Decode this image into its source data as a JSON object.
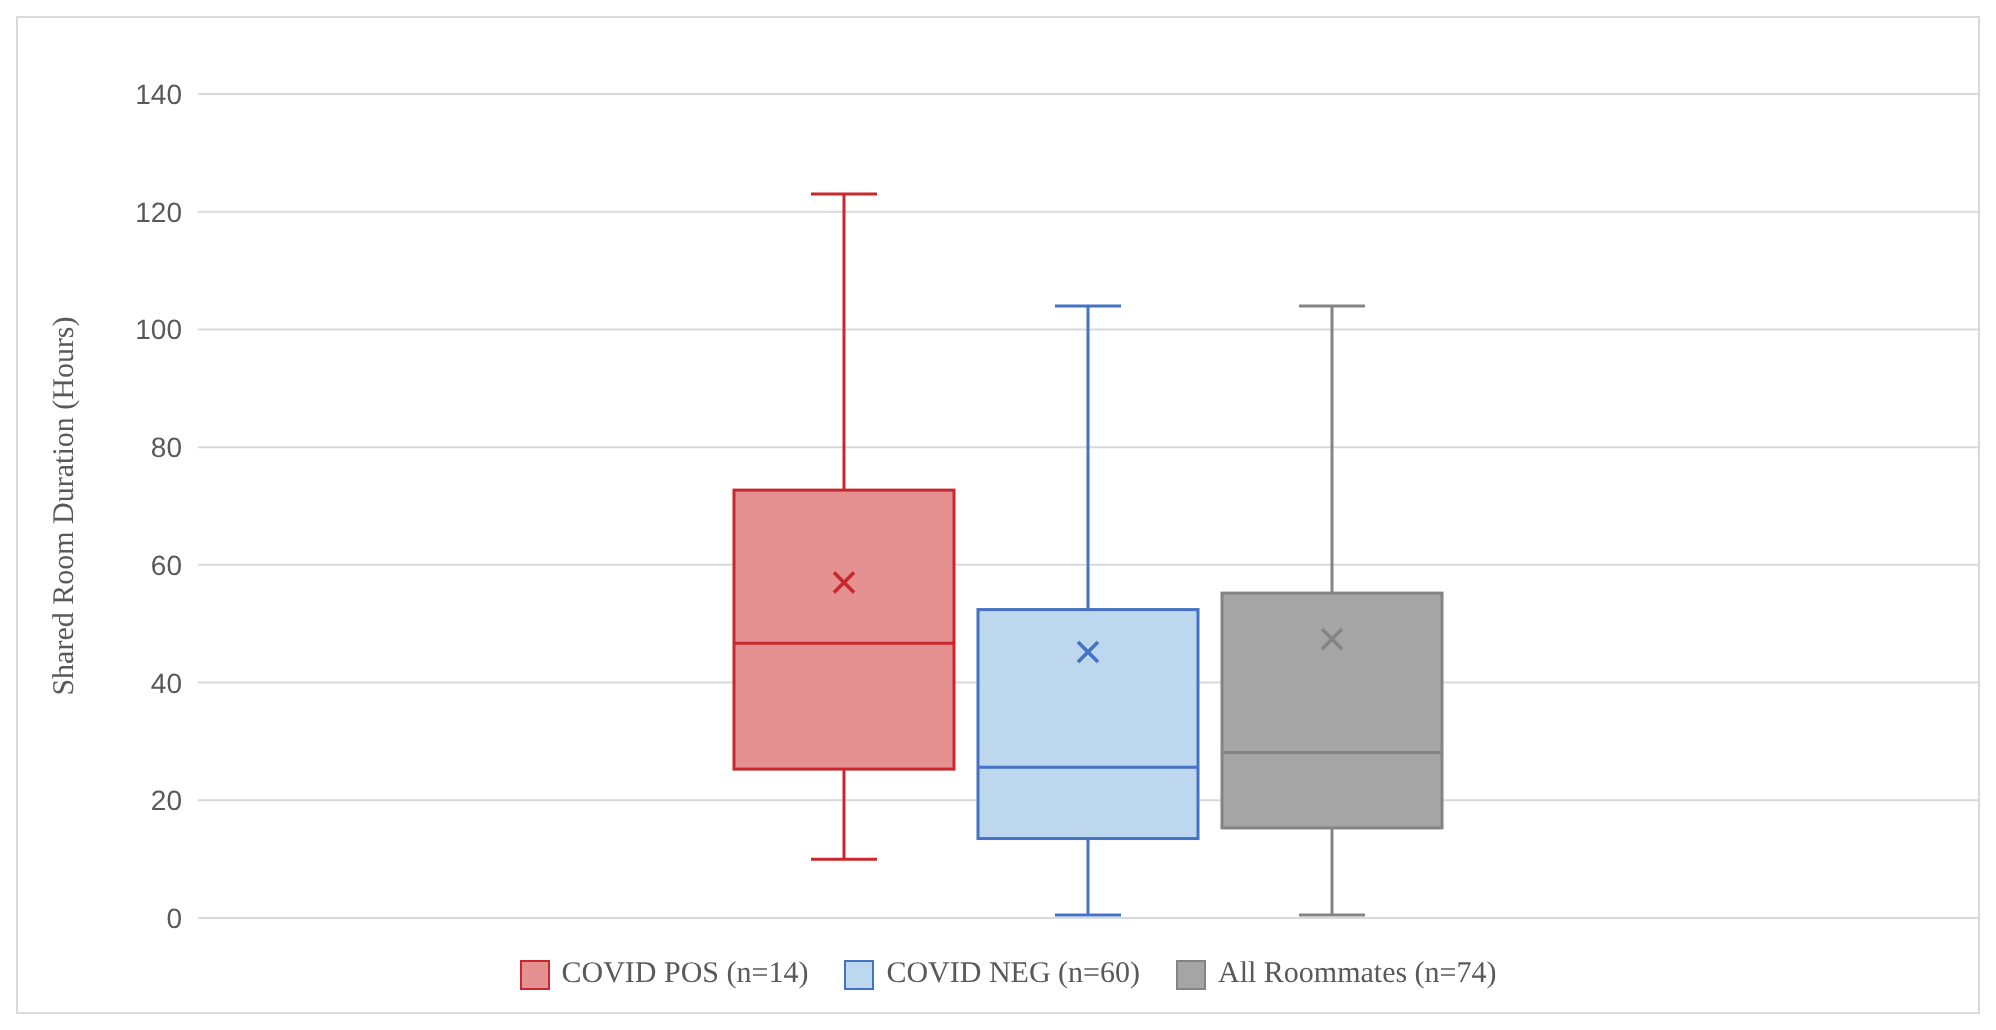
{
  "chart_data": {
    "type": "box",
    "ylabel": "Shared Room Duration (Hours)",
    "categories": [
      null
    ],
    "ylim": [
      0,
      140
    ],
    "yticks": [
      0,
      20,
      40,
      60,
      80,
      100,
      120,
      140
    ],
    "grid": "y",
    "tick_labels": "y",
    "legend": "bottom",
    "series": [
      {
        "name": "COVID POS (n=14)",
        "color": "#e69191",
        "boxes": [
          {
            "low": 10,
            "q1": 25.3,
            "median": 46.7,
            "q3": 72.7,
            "high": 123,
            "mean": 57
          }
        ]
      },
      {
        "name": "COVID NEG (n=60)",
        "color": "#bdd7ee",
        "boxes": [
          {
            "low": 0.5,
            "q1": 13.5,
            "median": 25.6,
            "q3": 52.4,
            "high": 104,
            "mean": 45.2
          }
        ]
      },
      {
        "name": "All Roommates (n=74)",
        "color": "#a5a5a5",
        "boxes": [
          {
            "low": 0.5,
            "q1": 15.3,
            "median": 28.1,
            "q3": 55.2,
            "high": 104,
            "mean": 47.4
          }
        ]
      }
    ]
  }
}
